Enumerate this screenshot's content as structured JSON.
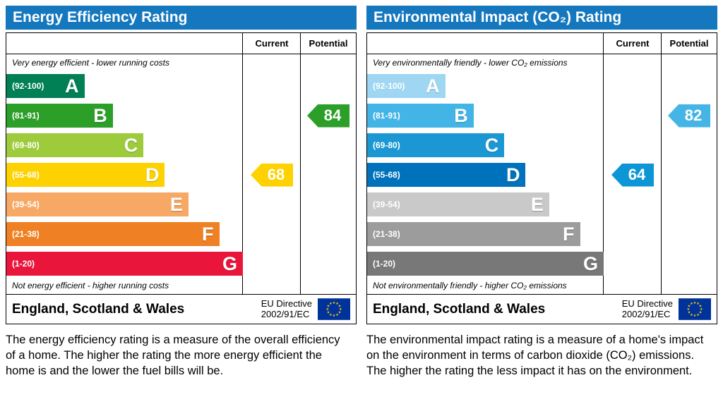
{
  "chart_data": [
    {
      "type": "bar",
      "title": "Energy Efficiency Rating",
      "columns": {
        "current": "Current",
        "potential": "Potential"
      },
      "top_note": "Very energy efficient - lower running costs",
      "bottom_note": "Not energy efficient - higher running costs",
      "categories": [
        "A",
        "B",
        "C",
        "D",
        "E",
        "F",
        "G"
      ],
      "bands": [
        {
          "letter": "A",
          "range": "(92-100)",
          "color": "#008054",
          "width_pct": 33
        },
        {
          "letter": "B",
          "range": "(81-91)",
          "color": "#2c9f29",
          "width_pct": 45
        },
        {
          "letter": "C",
          "range": "(69-80)",
          "color": "#9dcb3c",
          "width_pct": 58
        },
        {
          "letter": "D",
          "range": "(55-68)",
          "color": "#fed100",
          "width_pct": 67
        },
        {
          "letter": "E",
          "range": "(39-54)",
          "color": "#f8a865",
          "width_pct": 77
        },
        {
          "letter": "F",
          "range": "(21-38)",
          "color": "#ef8023",
          "width_pct": 90
        },
        {
          "letter": "G",
          "range": "(1-20)",
          "color": "#e9153b",
          "width_pct": 100
        }
      ],
      "current": {
        "value": 68,
        "band": "D",
        "color": "#fed100"
      },
      "potential": {
        "value": 84,
        "band": "B",
        "color": "#2c9f29"
      },
      "footer": {
        "region": "England, Scotland & Wales",
        "directive_line1": "EU Directive",
        "directive_line2": "2002/91/EC"
      },
      "description": "The energy efficiency rating is a measure of the overall efficiency of a home. The higher the rating the more energy efficient the home is and the lower the fuel bills will be."
    },
    {
      "type": "bar",
      "title": "Environmental Impact (CO₂) Rating",
      "columns": {
        "current": "Current",
        "potential": "Potential"
      },
      "top_note": "Very environmentally friendly - lower CO₂ emissions",
      "bottom_note": "Not environmentally friendly - higher CO₂ emissions",
      "categories": [
        "A",
        "B",
        "C",
        "D",
        "E",
        "F",
        "G"
      ],
      "bands": [
        {
          "letter": "A",
          "range": "(92-100)",
          "color": "#9fd6f2",
          "width_pct": 33
        },
        {
          "letter": "B",
          "range": "(81-91)",
          "color": "#42b4e6",
          "width_pct": 45
        },
        {
          "letter": "C",
          "range": "(69-80)",
          "color": "#1b98d4",
          "width_pct": 58
        },
        {
          "letter": "D",
          "range": "(55-68)",
          "color": "#0072bc",
          "width_pct": 67
        },
        {
          "letter": "E",
          "range": "(39-54)",
          "color": "#c9c9c9",
          "width_pct": 77
        },
        {
          "letter": "F",
          "range": "(21-38)",
          "color": "#9c9c9c",
          "width_pct": 90
        },
        {
          "letter": "G",
          "range": "(1-20)",
          "color": "#787878",
          "width_pct": 100
        }
      ],
      "current": {
        "value": 64,
        "band": "D",
        "color": "#0d96d6"
      },
      "potential": {
        "value": 82,
        "band": "B",
        "color": "#45b5e6"
      },
      "footer": {
        "region": "England, Scotland & Wales",
        "directive_line1": "EU Directive",
        "directive_line2": "2002/91/EC"
      },
      "description": "The environmental impact rating is a measure of a home's impact on the environment in terms of carbon dioxide (CO₂) emissions. The higher the rating the less impact it has on the environment."
    }
  ]
}
